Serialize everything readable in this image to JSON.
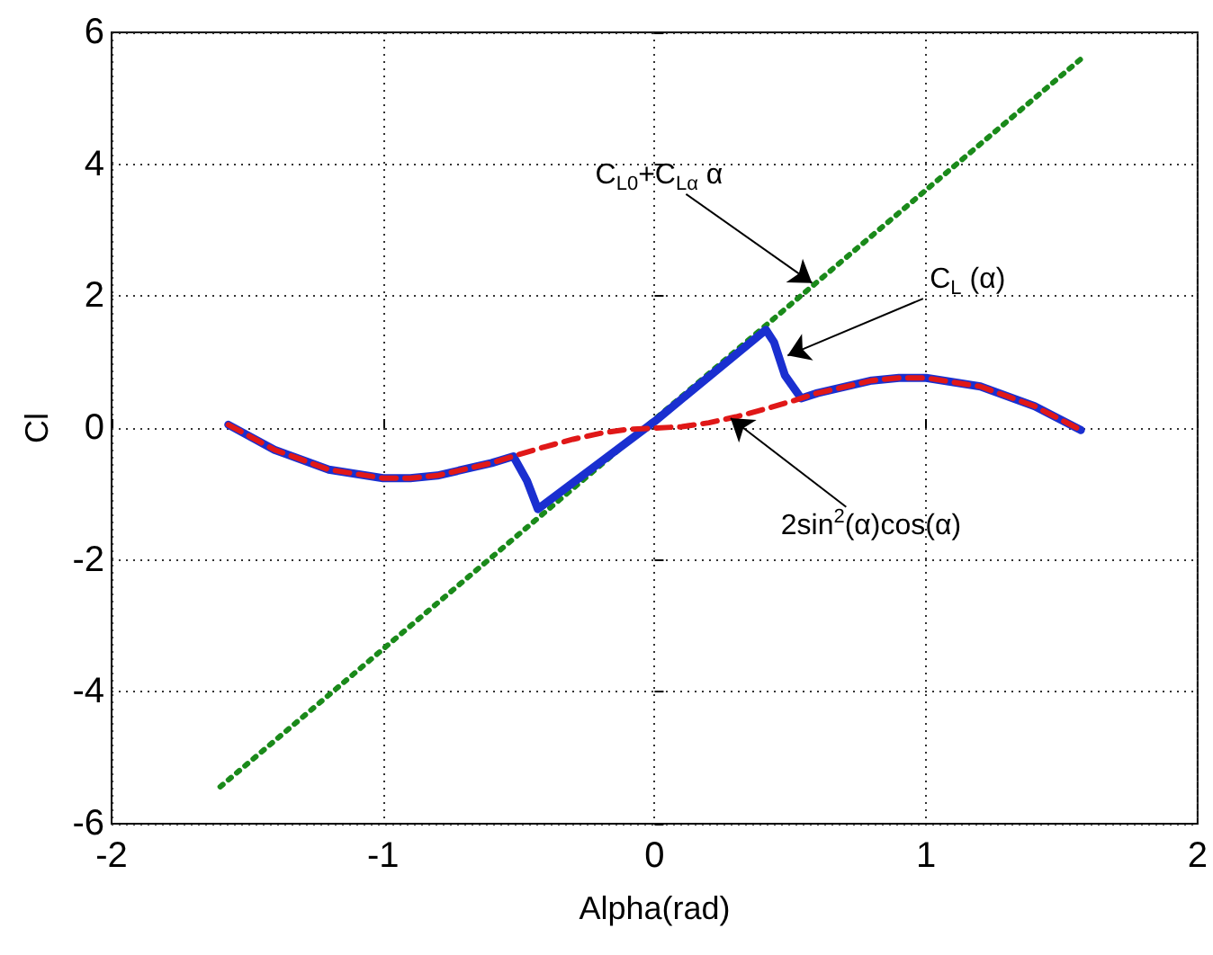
{
  "chart_data": {
    "type": "line",
    "xlabel": "Alpha(rad)",
    "ylabel": "Cl",
    "xlim": [
      -2,
      2
    ],
    "xticks": [
      -2,
      -1,
      0,
      1,
      2
    ],
    "ylim": [
      -6,
      6
    ],
    "yticks": [
      -6,
      -4,
      -2,
      0,
      2,
      4,
      6
    ],
    "grid": true,
    "marker": "none",
    "series": [
      {
        "color": "#1a8a1a",
        "line_style": "dotted",
        "x": [
          -1.6,
          1.58
        ],
        "values": [
          -5.44,
          5.63
        ]
      },
      {
        "color": "#1a2fd0",
        "line_style": "solid",
        "x": [
          -1.57,
          -1.4,
          -1.2,
          -1.0,
          -0.9,
          -0.8,
          -0.6,
          -0.52,
          -0.47,
          -0.43,
          0,
          0.41,
          0.44,
          0.48,
          0.54,
          0.6,
          0.8,
          0.9,
          1.0,
          1.2,
          1.4,
          1.57
        ],
        "values": [
          0.05,
          -0.33,
          -0.63,
          -0.76,
          -0.76,
          -0.72,
          -0.53,
          -0.43,
          -0.8,
          -1.23,
          0.1,
          1.49,
          1.3,
          0.8,
          0.45,
          0.53,
          0.72,
          0.76,
          0.76,
          0.63,
          0.33,
          -0.03
        ]
      },
      {
        "color": "#e01818",
        "line_style": "dashed",
        "x": [
          -1.57,
          -1.4,
          -1.2,
          -1.0,
          -0.9,
          -0.8,
          -0.6,
          -0.5,
          -0.4,
          -0.3,
          -0.2,
          -0.1,
          0,
          0.1,
          0.2,
          0.3,
          0.4,
          0.5,
          0.6,
          0.8,
          0.9,
          1.0,
          1.2,
          1.4,
          1.57
        ],
        "values": [
          0.05,
          -0.33,
          -0.63,
          -0.76,
          -0.76,
          -0.72,
          -0.53,
          -0.4,
          -0.28,
          -0.17,
          -0.08,
          -0.02,
          0,
          0.02,
          0.08,
          0.17,
          0.28,
          0.4,
          0.53,
          0.72,
          0.76,
          0.76,
          0.63,
          0.33,
          -0.03
        ]
      }
    ],
    "annotations": [
      {
        "text": "C$_{L0}$+C$_{Lα}$ α",
        "x": 0.58,
        "y": 2.2
      },
      {
        "text": "C$_{L}$ (α)",
        "x": 0.49,
        "y": 1.1
      },
      {
        "text": "2sin$^{2}$(α)cos(α)",
        "x": 0.28,
        "y": 0.15
      }
    ]
  }
}
